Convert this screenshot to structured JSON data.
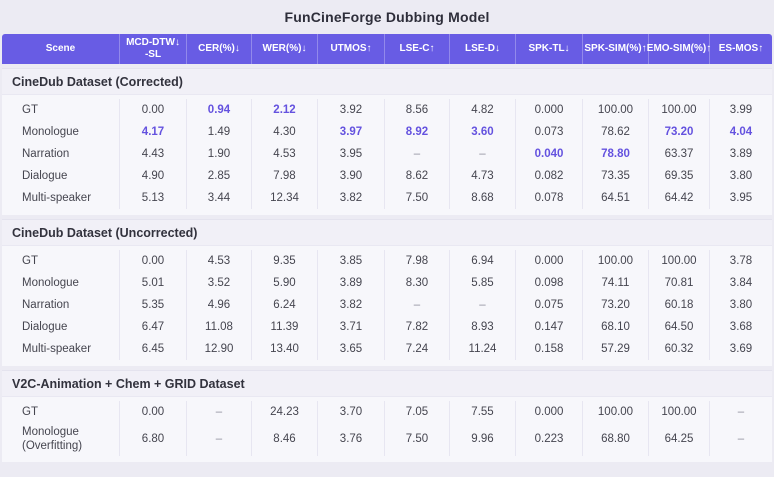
{
  "title": "FunCineForge Dubbing Model",
  "colors": {
    "header_bg": "#685ce4",
    "accent": "#6452df",
    "page_bg": "#ecebf3",
    "section_bg": "#f1f0f7",
    "block_bg": "#f7f7fb"
  },
  "chart_data": {
    "type": "table",
    "title": "FunCineForge Dubbing Model",
    "columns": [
      "Scene",
      "MCD-DTW-SL ↓",
      "CER(%) ↓",
      "WER(%) ↓",
      "UTMOS ↑",
      "LSE-C ↑",
      "LSE-D ↓",
      "SPK-TL ↓",
      "SPK-SIM(%) ↑",
      "EMO-SIM(%) ↑",
      "ES-MOS ↑"
    ],
    "sections": [
      {
        "title": "CineDub Dataset (Corrected)",
        "rows": [
          [
            "GT",
            "0.00",
            "0.94",
            "2.12",
            "3.92",
            "8.56",
            "4.82",
            "0.000",
            "100.00",
            "100.00",
            "3.99"
          ],
          [
            "Monologue",
            "4.17",
            "1.49",
            "4.30",
            "3.97",
            "8.92",
            "3.60",
            "0.073",
            "78.62",
            "73.20",
            "4.04"
          ],
          [
            "Narration",
            "4.43",
            "1.90",
            "4.53",
            "3.95",
            "–",
            "–",
            "0.040",
            "78.80",
            "63.37",
            "3.89"
          ],
          [
            "Dialogue",
            "4.90",
            "2.85",
            "7.98",
            "3.90",
            "8.62",
            "4.73",
            "0.082",
            "73.35",
            "69.35",
            "3.80"
          ],
          [
            "Multi-speaker",
            "5.13",
            "3.44",
            "12.34",
            "3.82",
            "7.50",
            "8.68",
            "0.078",
            "64.51",
            "64.42",
            "3.95"
          ]
        ]
      },
      {
        "title": "CineDub Dataset (Uncorrected)",
        "rows": [
          [
            "GT",
            "0.00",
            "4.53",
            "9.35",
            "3.85",
            "7.98",
            "6.94",
            "0.000",
            "100.00",
            "100.00",
            "3.78"
          ],
          [
            "Monologue",
            "5.01",
            "3.52",
            "5.90",
            "3.89",
            "8.30",
            "5.85",
            "0.098",
            "74.11",
            "70.81",
            "3.84"
          ],
          [
            "Narration",
            "5.35",
            "4.96",
            "6.24",
            "3.82",
            "–",
            "–",
            "0.075",
            "73.20",
            "60.18",
            "3.80"
          ],
          [
            "Dialogue",
            "6.47",
            "11.08",
            "11.39",
            "3.71",
            "7.82",
            "8.93",
            "0.147",
            "68.10",
            "64.50",
            "3.68"
          ],
          [
            "Multi-speaker",
            "6.45",
            "12.90",
            "13.40",
            "3.65",
            "7.24",
            "11.24",
            "0.158",
            "57.29",
            "60.32",
            "3.69"
          ]
        ]
      },
      {
        "title": "V2C-Animation + Chem + GRID Dataset",
        "rows": [
          [
            "GT",
            "0.00",
            "–",
            "24.23",
            "3.70",
            "7.05",
            "7.55",
            "0.000",
            "100.00",
            "100.00",
            "–"
          ],
          [
            "Monologue\n(Overfitting)",
            "6.80",
            "–",
            "8.46",
            "3.76",
            "7.50",
            "9.96",
            "0.223",
            "68.80",
            "64.25",
            "–"
          ]
        ]
      }
    ]
  },
  "table": {
    "columns": [
      {
        "line1": "Scene",
        "arrow": ""
      },
      {
        "line1": "MCD-DTW",
        "arrow": "↓",
        "line2": "-SL"
      },
      {
        "line1": "CER(%)",
        "arrow": "↓"
      },
      {
        "line1": "WER(%)",
        "arrow": "↓"
      },
      {
        "line1": "UTMOS",
        "arrow": "↑"
      },
      {
        "line1": "LSE-C",
        "arrow": "↑"
      },
      {
        "line1": "LSE-D",
        "arrow": "↓"
      },
      {
        "line1": "SPK-TL",
        "arrow": "↓"
      },
      {
        "line1": "SPK-SIM(%)",
        "arrow": "↑"
      },
      {
        "line1": "EMO-SIM(%)",
        "arrow": "↑"
      },
      {
        "line1": "ES-MOS",
        "arrow": "↑"
      }
    ],
    "sections": [
      {
        "title": "CineDub Dataset (Corrected)",
        "rows": [
          {
            "scene": "GT",
            "values": [
              {
                "v": "0.00"
              },
              {
                "v": "0.94",
                "hl": true
              },
              {
                "v": "2.12",
                "hl": true
              },
              {
                "v": "3.92"
              },
              {
                "v": "8.56"
              },
              {
                "v": "4.82"
              },
              {
                "v": "0.000"
              },
              {
                "v": "100.00"
              },
              {
                "v": "100.00"
              },
              {
                "v": "3.99"
              }
            ]
          },
          {
            "scene": "Monologue",
            "values": [
              {
                "v": "4.17",
                "hl": true
              },
              {
                "v": "1.49"
              },
              {
                "v": "4.30"
              },
              {
                "v": "3.97",
                "hl": true
              },
              {
                "v": "8.92",
                "hl": true
              },
              {
                "v": "3.60",
                "hl": true
              },
              {
                "v": "0.073"
              },
              {
                "v": "78.62"
              },
              {
                "v": "73.20",
                "hl": true
              },
              {
                "v": "4.04",
                "hl": true
              }
            ]
          },
          {
            "scene": "Narration",
            "values": [
              {
                "v": "4.43"
              },
              {
                "v": "1.90"
              },
              {
                "v": "4.53"
              },
              {
                "v": "3.95"
              },
              {
                "v": "–"
              },
              {
                "v": "–"
              },
              {
                "v": "0.040",
                "hl": true
              },
              {
                "v": "78.80",
                "hl": true
              },
              {
                "v": "63.37"
              },
              {
                "v": "3.89"
              }
            ]
          },
          {
            "scene": "Dialogue",
            "values": [
              {
                "v": "4.90"
              },
              {
                "v": "2.85"
              },
              {
                "v": "7.98"
              },
              {
                "v": "3.90"
              },
              {
                "v": "8.62"
              },
              {
                "v": "4.73"
              },
              {
                "v": "0.082"
              },
              {
                "v": "73.35"
              },
              {
                "v": "69.35"
              },
              {
                "v": "3.80"
              }
            ]
          },
          {
            "scene": "Multi-speaker",
            "values": [
              {
                "v": "5.13"
              },
              {
                "v": "3.44"
              },
              {
                "v": "12.34"
              },
              {
                "v": "3.82"
              },
              {
                "v": "7.50"
              },
              {
                "v": "8.68"
              },
              {
                "v": "0.078"
              },
              {
                "v": "64.51"
              },
              {
                "v": "64.42"
              },
              {
                "v": "3.95"
              }
            ]
          }
        ]
      },
      {
        "title": "CineDub Dataset (Uncorrected)",
        "rows": [
          {
            "scene": "GT",
            "values": [
              {
                "v": "0.00"
              },
              {
                "v": "4.53"
              },
              {
                "v": "9.35"
              },
              {
                "v": "3.85"
              },
              {
                "v": "7.98"
              },
              {
                "v": "6.94"
              },
              {
                "v": "0.000"
              },
              {
                "v": "100.00"
              },
              {
                "v": "100.00"
              },
              {
                "v": "3.78"
              }
            ]
          },
          {
            "scene": "Monologue",
            "values": [
              {
                "v": "5.01"
              },
              {
                "v": "3.52"
              },
              {
                "v": "5.90"
              },
              {
                "v": "3.89"
              },
              {
                "v": "8.30"
              },
              {
                "v": "5.85"
              },
              {
                "v": "0.098"
              },
              {
                "v": "74.11"
              },
              {
                "v": "70.81"
              },
              {
                "v": "3.84"
              }
            ]
          },
          {
            "scene": "Narration",
            "values": [
              {
                "v": "5.35"
              },
              {
                "v": "4.96"
              },
              {
                "v": "6.24"
              },
              {
                "v": "3.82"
              },
              {
                "v": "–"
              },
              {
                "v": "–"
              },
              {
                "v": "0.075"
              },
              {
                "v": "73.20"
              },
              {
                "v": "60.18"
              },
              {
                "v": "3.80"
              }
            ]
          },
          {
            "scene": "Dialogue",
            "values": [
              {
                "v": "6.47"
              },
              {
                "v": "11.08"
              },
              {
                "v": "11.39"
              },
              {
                "v": "3.71"
              },
              {
                "v": "7.82"
              },
              {
                "v": "8.93"
              },
              {
                "v": "0.147"
              },
              {
                "v": "68.10"
              },
              {
                "v": "64.50"
              },
              {
                "v": "3.68"
              }
            ]
          },
          {
            "scene": "Multi-speaker",
            "values": [
              {
                "v": "6.45"
              },
              {
                "v": "12.90"
              },
              {
                "v": "13.40"
              },
              {
                "v": "3.65"
              },
              {
                "v": "7.24"
              },
              {
                "v": "11.24"
              },
              {
                "v": "0.158"
              },
              {
                "v": "57.29"
              },
              {
                "v": "60.32"
              },
              {
                "v": "3.69"
              }
            ]
          }
        ]
      },
      {
        "title": "V2C-Animation + Chem + GRID Dataset",
        "rows": [
          {
            "scene": "GT",
            "values": [
              {
                "v": "0.00"
              },
              {
                "v": "–"
              },
              {
                "v": "24.23"
              },
              {
                "v": "3.70"
              },
              {
                "v": "7.05"
              },
              {
                "v": "7.55"
              },
              {
                "v": "0.000"
              },
              {
                "v": "100.00"
              },
              {
                "v": "100.00"
              },
              {
                "v": "–"
              }
            ]
          },
          {
            "scene": "Monologue\n(Overfitting)",
            "values": [
              {
                "v": "6.80"
              },
              {
                "v": "–"
              },
              {
                "v": "8.46"
              },
              {
                "v": "3.76"
              },
              {
                "v": "7.50"
              },
              {
                "v": "9.96"
              },
              {
                "v": "0.223"
              },
              {
                "v": "68.80"
              },
              {
                "v": "64.25"
              },
              {
                "v": "–"
              }
            ]
          }
        ]
      }
    ]
  }
}
